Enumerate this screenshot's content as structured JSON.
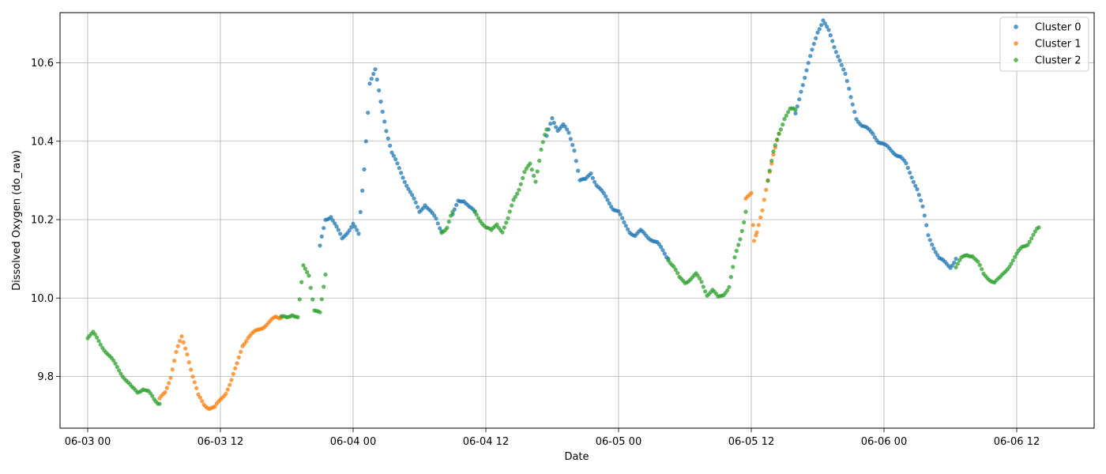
{
  "chart_data": {
    "type": "scatter",
    "title": "",
    "xlabel": "Date",
    "ylabel": "Dissolved Oxygen (do_raw)",
    "x_unit": "datetime",
    "xlim": [
      "2024-06-02T21:30",
      "2024-06-06T19:00"
    ],
    "ylim": [
      9.668,
      10.728
    ],
    "grid": true,
    "legend_position": "top-right",
    "x_ticks": [
      {
        "label": "06-03 00",
        "value": "2024-06-03T00:00"
      },
      {
        "label": "06-03 12",
        "value": "2024-06-03T12:00"
      },
      {
        "label": "06-04 00",
        "value": "2024-06-04T00:00"
      },
      {
        "label": "06-04 12",
        "value": "2024-06-04T12:00"
      },
      {
        "label": "06-05 00",
        "value": "2024-06-05T00:00"
      },
      {
        "label": "06-05 12",
        "value": "2024-06-05T12:00"
      },
      {
        "label": "06-06 00",
        "value": "2024-06-06T00:00"
      },
      {
        "label": "06-06 12",
        "value": "2024-06-06T12:00"
      }
    ],
    "y_ticks": [
      {
        "label": "9.8",
        "value": 9.8
      },
      {
        "label": "10.0",
        "value": 10.0
      },
      {
        "label": "10.2",
        "value": 10.2
      },
      {
        "label": "10.4",
        "value": 10.4
      },
      {
        "label": "10.6",
        "value": 10.6
      }
    ],
    "series": [
      {
        "name": "Cluster 0",
        "color": "#1f77b4",
        "segments": [
          [
            [
              "2024-06-03T21:00",
              10.13
            ],
            [
              "2024-06-03T21:30",
              10.2
            ],
            [
              "2024-06-03T22:00",
              10.21
            ],
            [
              "2024-06-03T22:30",
              10.18
            ],
            [
              "2024-06-03T23:00",
              10.15
            ],
            [
              "2024-06-03T23:30",
              10.17
            ],
            [
              "2024-06-04T00:00",
              10.19
            ],
            [
              "2024-06-04T00:30",
              10.16
            ],
            [
              "2024-06-04T01:00",
              10.33
            ],
            [
              "2024-06-04T01:30",
              10.55
            ],
            [
              "2024-06-04T02:00",
              10.58
            ],
            [
              "2024-06-04T02:30",
              10.5
            ],
            [
              "2024-06-04T03:00",
              10.43
            ],
            [
              "2024-06-04T03:30",
              10.37
            ],
            [
              "2024-06-04T04:00",
              10.34
            ],
            [
              "2024-06-04T04:30",
              10.31
            ],
            [
              "2024-06-04T05:00",
              10.28
            ],
            [
              "2024-06-04T05:30",
              10.25
            ],
            [
              "2024-06-04T06:00",
              10.22
            ],
            [
              "2024-06-04T06:30",
              10.24
            ],
            [
              "2024-06-04T07:00",
              10.22
            ],
            [
              "2024-06-04T07:30",
              10.2
            ],
            [
              "2024-06-04T08:00",
              10.17
            ]
          ],
          [
            [
              "2024-06-04T09:00",
              10.21
            ],
            [
              "2024-06-04T09:30",
              10.25
            ],
            [
              "2024-06-04T10:00",
              10.25
            ],
            [
              "2024-06-04T10:30",
              10.23
            ],
            [
              "2024-06-04T11:00",
              10.22
            ]
          ],
          [
            [
              "2024-06-04T17:30",
              10.41
            ],
            [
              "2024-06-04T18:00",
              10.46
            ],
            [
              "2024-06-04T18:30",
              10.43
            ],
            [
              "2024-06-04T19:00",
              10.44
            ],
            [
              "2024-06-04T19:30",
              10.42
            ],
            [
              "2024-06-04T20:00",
              10.38
            ],
            [
              "2024-06-04T20:30",
              10.3
            ],
            [
              "2024-06-04T21:00",
              10.3
            ],
            [
              "2024-06-04T21:30",
              10.32
            ],
            [
              "2024-06-04T22:00",
              10.29
            ],
            [
              "2024-06-04T22:30",
              10.27
            ],
            [
              "2024-06-04T23:00",
              10.25
            ],
            [
              "2024-06-04T23:30",
              10.23
            ],
            [
              "2024-06-05T00:00",
              10.22
            ],
            [
              "2024-06-05T00:30",
              10.19
            ],
            [
              "2024-06-05T01:00",
              10.17
            ],
            [
              "2024-06-05T01:30",
              10.16
            ],
            [
              "2024-06-05T02:00",
              10.17
            ],
            [
              "2024-06-05T02:30",
              10.16
            ],
            [
              "2024-06-05T03:00",
              10.15
            ],
            [
              "2024-06-05T03:30",
              10.14
            ],
            [
              "2024-06-05T04:00",
              10.12
            ],
            [
              "2024-06-05T04:30",
              10.1
            ]
          ],
          [
            [
              "2024-06-05T16:00",
              10.47
            ],
            [
              "2024-06-05T16:30",
              10.53
            ],
            [
              "2024-06-05T17:00",
              10.58
            ],
            [
              "2024-06-05T17:30",
              10.63
            ],
            [
              "2024-06-05T18:00",
              10.68
            ],
            [
              "2024-06-05T18:30",
              10.71
            ],
            [
              "2024-06-05T19:00",
              10.68
            ],
            [
              "2024-06-05T19:30",
              10.64
            ],
            [
              "2024-06-05T20:00",
              10.61
            ],
            [
              "2024-06-05T20:30",
              10.57
            ],
            [
              "2024-06-05T21:00",
              10.51
            ],
            [
              "2024-06-05T21:30",
              10.46
            ],
            [
              "2024-06-05T22:00",
              10.44
            ],
            [
              "2024-06-05T22:30",
              10.43
            ],
            [
              "2024-06-05T23:00",
              10.42
            ],
            [
              "2024-06-05T23:30",
              10.4
            ],
            [
              "2024-06-06T00:00",
              10.39
            ],
            [
              "2024-06-06T00:30",
              10.38
            ],
            [
              "2024-06-06T01:00",
              10.37
            ],
            [
              "2024-06-06T01:30",
              10.36
            ],
            [
              "2024-06-06T02:00",
              10.34
            ],
            [
              "2024-06-06T02:30",
              10.31
            ],
            [
              "2024-06-06T03:00",
              10.28
            ],
            [
              "2024-06-06T03:30",
              10.23
            ],
            [
              "2024-06-06T04:00",
              10.16
            ],
            [
              "2024-06-06T04:30",
              10.13
            ],
            [
              "2024-06-06T05:00",
              10.1
            ],
            [
              "2024-06-06T05:30",
              10.09
            ],
            [
              "2024-06-06T06:00",
              10.08
            ],
            [
              "2024-06-06T06:30",
              10.1
            ]
          ]
        ]
      },
      {
        "name": "Cluster 1",
        "color": "#ff7f0e",
        "segments": [
          [
            [
              "2024-06-03T06:30",
              9.74
            ],
            [
              "2024-06-03T07:00",
              9.76
            ],
            [
              "2024-06-03T07:30",
              9.8
            ],
            [
              "2024-06-03T08:00",
              9.86
            ],
            [
              "2024-06-03T08:30",
              9.9
            ],
            [
              "2024-06-03T09:00",
              9.86
            ],
            [
              "2024-06-03T09:30",
              9.8
            ],
            [
              "2024-06-03T10:00",
              9.75
            ],
            [
              "2024-06-03T10:30",
              9.73
            ],
            [
              "2024-06-03T11:00",
              9.72
            ],
            [
              "2024-06-03T11:30",
              9.72
            ],
            [
              "2024-06-03T12:00",
              9.74
            ],
            [
              "2024-06-03T12:30",
              9.76
            ],
            [
              "2024-06-03T13:00",
              9.79
            ],
            [
              "2024-06-03T13:30",
              9.83
            ],
            [
              "2024-06-03T14:00",
              9.88
            ],
            [
              "2024-06-03T14:30",
              9.9
            ],
            [
              "2024-06-03T15:00",
              9.91
            ],
            [
              "2024-06-03T15:30",
              9.92
            ],
            [
              "2024-06-03T16:00",
              9.93
            ],
            [
              "2024-06-03T16:30",
              9.94
            ],
            [
              "2024-06-03T17:00",
              9.95
            ],
            [
              "2024-06-03T17:30",
              9.95
            ]
          ],
          [
            [
              "2024-06-05T11:30",
              10.25
            ],
            [
              "2024-06-05T12:00",
              10.27
            ],
            [
              "2024-06-05T12:15",
              10.15
            ],
            [
              "2024-06-05T12:30",
              10.17
            ],
            [
              "2024-06-05T13:00",
              10.22
            ],
            [
              "2024-06-05T13:30",
              10.3
            ],
            [
              "2024-06-05T14:00",
              10.37
            ],
            [
              "2024-06-05T14:30",
              10.42
            ]
          ]
        ]
      },
      {
        "name": "Cluster 2",
        "color": "#2ca02c",
        "segments": [
          [
            [
              "2024-06-03T00:00",
              9.9
            ],
            [
              "2024-06-03T00:30",
              9.91
            ],
            [
              "2024-06-03T01:00",
              9.89
            ],
            [
              "2024-06-03T01:30",
              9.87
            ],
            [
              "2024-06-03T02:00",
              9.85
            ],
            [
              "2024-06-03T02:30",
              9.83
            ],
            [
              "2024-06-03T03:00",
              9.81
            ],
            [
              "2024-06-03T03:30",
              9.79
            ],
            [
              "2024-06-03T04:00",
              9.77
            ],
            [
              "2024-06-03T04:30",
              9.76
            ],
            [
              "2024-06-03T05:00",
              9.77
            ],
            [
              "2024-06-03T05:30",
              9.76
            ],
            [
              "2024-06-03T06:00",
              9.74
            ],
            [
              "2024-06-03T06:30",
              9.73
            ]
          ],
          [
            [
              "2024-06-03T17:30",
              9.95
            ],
            [
              "2024-06-03T18:00",
              9.95
            ],
            [
              "2024-06-03T18:30",
              9.96
            ],
            [
              "2024-06-03T19:00",
              9.95
            ],
            [
              "2024-06-03T19:30",
              10.08
            ],
            [
              "2024-06-03T20:00",
              10.06
            ],
            [
              "2024-06-03T20:30",
              9.97
            ],
            [
              "2024-06-03T21:00",
              9.96
            ],
            [
              "2024-06-03T21:30",
              10.06
            ]
          ],
          [
            [
              "2024-06-04T08:00",
              10.17
            ],
            [
              "2024-06-04T08:30",
              10.18
            ],
            [
              "2024-06-04T09:00",
              10.22
            ]
          ],
          [
            [
              "2024-06-04T11:00",
              10.22
            ],
            [
              "2024-06-04T11:30",
              10.2
            ],
            [
              "2024-06-04T12:00",
              10.18
            ],
            [
              "2024-06-04T12:30",
              10.17
            ],
            [
              "2024-06-04T13:00",
              10.19
            ],
            [
              "2024-06-04T13:30",
              10.17
            ],
            [
              "2024-06-04T14:00",
              10.2
            ],
            [
              "2024-06-04T14:30",
              10.25
            ],
            [
              "2024-06-04T15:00",
              10.28
            ],
            [
              "2024-06-04T15:30",
              10.32
            ],
            [
              "2024-06-04T16:00",
              10.34
            ],
            [
              "2024-06-04T16:30",
              10.3
            ],
            [
              "2024-06-04T17:00",
              10.38
            ],
            [
              "2024-06-04T17:30",
              10.43
            ]
          ],
          [
            [
              "2024-06-05T04:30",
              10.1
            ],
            [
              "2024-06-05T05:00",
              10.08
            ],
            [
              "2024-06-05T05:30",
              10.05
            ],
            [
              "2024-06-05T06:00",
              10.04
            ],
            [
              "2024-06-05T06:30",
              10.05
            ],
            [
              "2024-06-05T07:00",
              10.06
            ],
            [
              "2024-06-05T07:30",
              10.04
            ],
            [
              "2024-06-05T08:00",
              10.01
            ],
            [
              "2024-06-05T08:30",
              10.02
            ],
            [
              "2024-06-05T09:00",
              10.0
            ],
            [
              "2024-06-05T09:30",
              10.01
            ],
            [
              "2024-06-05T10:00",
              10.03
            ],
            [
              "2024-06-05T10:30",
              10.1
            ],
            [
              "2024-06-05T11:00",
              10.15
            ],
            [
              "2024-06-05T11:30",
              10.22
            ]
          ],
          [
            [
              "2024-06-05T13:30",
              10.3
            ],
            [
              "2024-06-05T14:00",
              10.37
            ],
            [
              "2024-06-05T14:30",
              10.42
            ],
            [
              "2024-06-05T15:00",
              10.46
            ],
            [
              "2024-06-05T15:30",
              10.48
            ],
            [
              "2024-06-05T16:00",
              10.48
            ]
          ],
          [
            [
              "2024-06-06T06:30",
              10.08
            ],
            [
              "2024-06-06T07:00",
              10.1
            ],
            [
              "2024-06-06T07:30",
              10.11
            ],
            [
              "2024-06-06T08:00",
              10.11
            ],
            [
              "2024-06-06T08:30",
              10.09
            ],
            [
              "2024-06-06T09:00",
              10.06
            ],
            [
              "2024-06-06T09:30",
              10.05
            ],
            [
              "2024-06-06T10:00",
              10.04
            ],
            [
              "2024-06-06T10:30",
              10.05
            ],
            [
              "2024-06-06T11:00",
              10.07
            ],
            [
              "2024-06-06T11:30",
              10.09
            ],
            [
              "2024-06-06T12:00",
              10.11
            ],
            [
              "2024-06-06T12:30",
              10.13
            ],
            [
              "2024-06-06T13:00",
              10.14
            ],
            [
              "2024-06-06T13:30",
              10.16
            ],
            [
              "2024-06-06T14:00",
              10.18
            ]
          ]
        ]
      }
    ]
  }
}
